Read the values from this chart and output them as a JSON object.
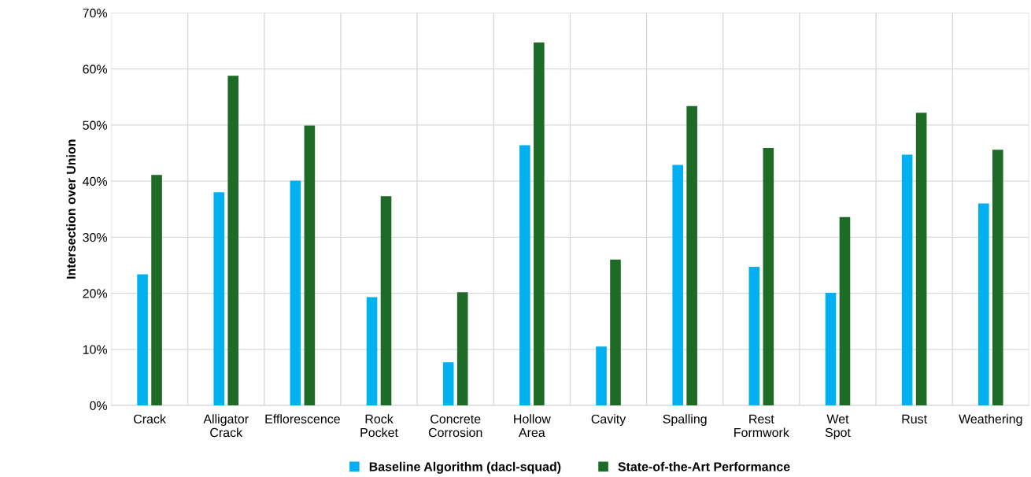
{
  "chart_data": {
    "type": "bar",
    "ylabel": "Intersection over Union",
    "categories": [
      "Crack",
      "Alligator\nCrack",
      "Efflorescence",
      "Rock\nPocket",
      "Concrete\nCorrosion",
      "Hollow\nArea",
      "Cavity",
      "Spalling",
      "Rest\nFormwork",
      "Wet\nSpot",
      "Rust",
      "Weathering"
    ],
    "series": [
      {
        "name": "Baseline Algorithm (dacl-squad)",
        "color": "#00b0f0",
        "values": [
          23.4,
          38.0,
          40.1,
          19.3,
          7.7,
          46.4,
          10.5,
          42.9,
          24.7,
          20.1,
          44.7,
          36.0
        ]
      },
      {
        "name": "State-of-the-Art Performance",
        "color": "#1e6b27",
        "values": [
          41.1,
          58.8,
          49.9,
          37.3,
          20.2,
          64.7,
          26.0,
          53.4,
          45.9,
          33.6,
          52.2,
          45.6
        ]
      }
    ],
    "ylim": [
      0,
      70
    ],
    "yticks": [
      {
        "value": 0,
        "label": "0%"
      },
      {
        "value": 10,
        "label": "10%"
      },
      {
        "value": 20,
        "label": "20%"
      },
      {
        "value": 30,
        "label": "30%"
      },
      {
        "value": 40,
        "label": "40%"
      },
      {
        "value": 50,
        "label": "50%"
      },
      {
        "value": 60,
        "label": "60%"
      },
      {
        "value": 70,
        "label": "70%"
      }
    ],
    "grid": true,
    "legend": "bottom"
  }
}
